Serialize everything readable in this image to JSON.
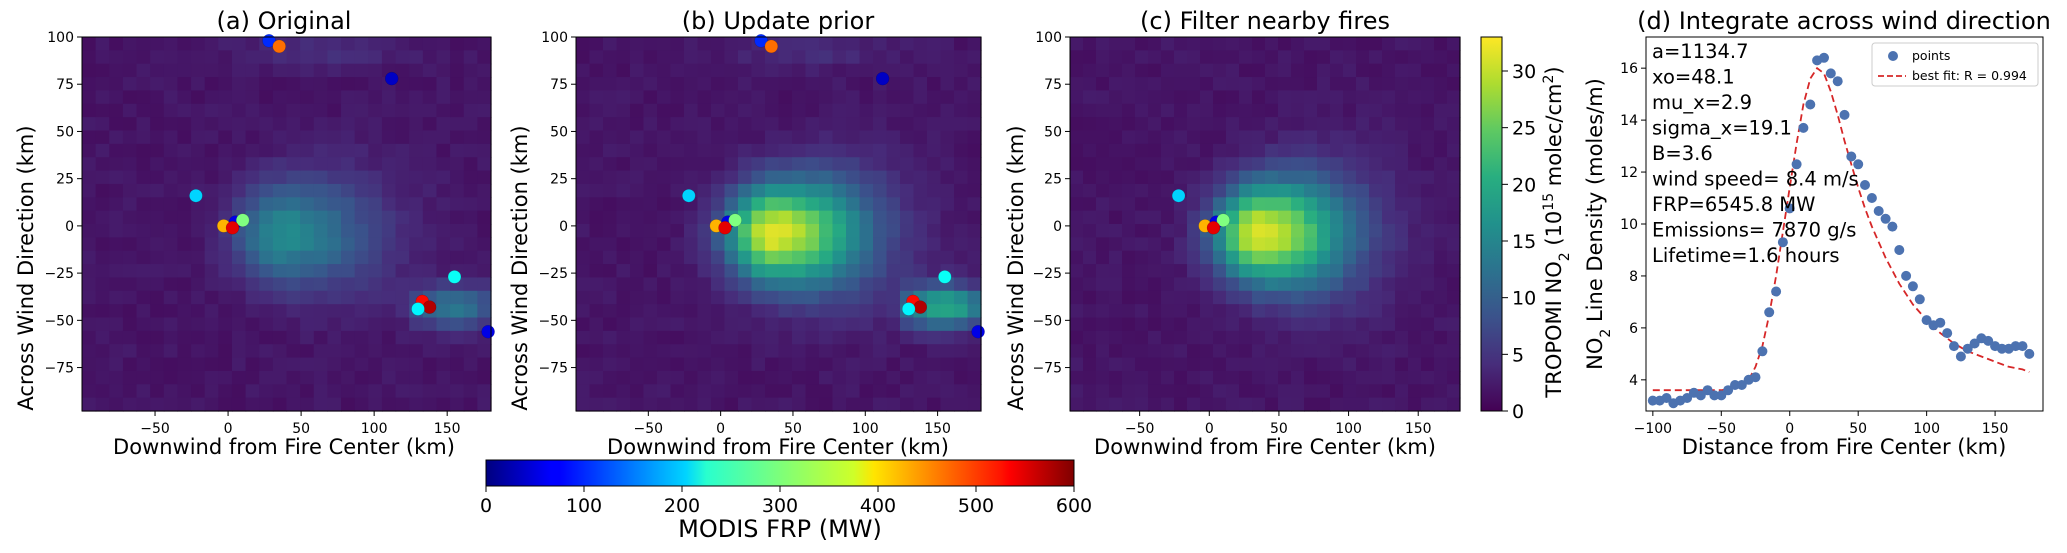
{
  "panels": [
    {
      "title": "(a) Original",
      "xlabel": "Downwind from Fire Center (km)",
      "ylabel": "Across Wind Direction (km)"
    },
    {
      "title": "(b) Update prior",
      "xlabel": "Downwind from Fire Center (km)",
      "ylabel": "Across Wind Direction (km)"
    },
    {
      "title": "(c) Filter nearby fires",
      "xlabel": "Downwind from Fire Center (km)",
      "ylabel": "Across Wind Direction (km)"
    }
  ],
  "no2_colorbar": {
    "label_main": "TROPOMI NO",
    "label_sub": "2",
    "label_units": " (10",
    "label_exp": "15",
    "label_tail": " molec/cm",
    "label_exp2": "2",
    "label_close": ")",
    "ticks": [
      "0",
      "5",
      "10",
      "15",
      "20",
      "25",
      "30"
    ],
    "range": [
      0,
      33
    ]
  },
  "frp_colorbar": {
    "label": "MODIS FRP (MW)",
    "ticks": [
      "0",
      "100",
      "200",
      "300",
      "400",
      "500",
      "600"
    ],
    "range": [
      0,
      600
    ]
  },
  "d_panel": {
    "title": "(d) Integrate across wind direction",
    "xlabel": "Distance from Fire Center (km)",
    "ylabel_main": "NO",
    "ylabel_sub": "2",
    "ylabel_tail": " Line Density (moles/m)",
    "legend_points": "points",
    "legend_fit": "best fit: R = 0.994",
    "annotations": [
      "a=1134.7",
      "xo=48.1",
      "mu_x=2.9",
      "sigma_x=19.1",
      "B=3.6",
      "wind speed=  8.4 m/s",
      "FRP=6545.8 MW",
      "Emissions=  7870 g/s",
      "Lifetime=1.6 hours"
    ]
  },
  "map_axes": {
    "xticks": [
      "−50",
      "0",
      "50",
      "100",
      "150"
    ],
    "xtick_values": [
      -50,
      0,
      50,
      100,
      150
    ],
    "yticks": [
      "100",
      "75",
      "50",
      "25",
      "0",
      "−25",
      "−50",
      "−75"
    ],
    "ytick_values": [
      100,
      75,
      50,
      25,
      0,
      -25,
      -50,
      -75
    ],
    "xlim": [
      -100,
      180
    ],
    "ylim": [
      -98,
      100
    ]
  },
  "chart_data": {
    "type": "scatter",
    "title": "(d) Integrate across wind direction",
    "xlabel": "Distance from Fire Center (km)",
    "ylabel": "NO2 Line Density (moles/m)",
    "xlim": [
      -105,
      185
    ],
    "ylim": [
      2.8,
      17.2
    ],
    "xticks": [
      -100,
      -50,
      0,
      50,
      100,
      150
    ],
    "xtick_labels": [
      "−100",
      "−50",
      "0",
      "50",
      "100",
      "150"
    ],
    "yticks": [
      4,
      6,
      8,
      10,
      12,
      14,
      16
    ],
    "legend_position": "top-right",
    "series": [
      {
        "name": "points",
        "color": "#4c72b0",
        "x": [
          -100,
          -95,
          -90,
          -85,
          -80,
          -75,
          -70,
          -65,
          -60,
          -55,
          -50,
          -45,
          -40,
          -35,
          -30,
          -25,
          -20,
          -15,
          -10,
          -5,
          0,
          5,
          10,
          15,
          20,
          25,
          30,
          35,
          40,
          45,
          50,
          55,
          60,
          65,
          70,
          75,
          80,
          85,
          90,
          95,
          100,
          105,
          110,
          115,
          120,
          125,
          130,
          135,
          140,
          145,
          150,
          155,
          160,
          165,
          170,
          175
        ],
        "y": [
          3.2,
          3.2,
          3.3,
          3.1,
          3.2,
          3.3,
          3.5,
          3.4,
          3.6,
          3.4,
          3.4,
          3.6,
          3.8,
          3.8,
          4.0,
          4.1,
          5.1,
          6.6,
          7.4,
          9.3,
          10.6,
          12.3,
          13.7,
          14.6,
          16.3,
          16.4,
          15.8,
          15.5,
          14.2,
          12.6,
          12.3,
          11.5,
          11.0,
          10.5,
          10.2,
          9.9,
          9.0,
          8.0,
          7.6,
          7.1,
          6.3,
          6.1,
          6.2,
          5.8,
          5.3,
          4.9,
          5.2,
          5.4,
          5.6,
          5.5,
          5.3,
          5.2,
          5.2,
          5.3,
          5.3,
          5.0
        ]
      },
      {
        "name": "best fit: R = 0.994",
        "color": "#d62728",
        "x": [
          -100,
          -80,
          -60,
          -50,
          -40,
          -35,
          -30,
          -25,
          -20,
          -15,
          -10,
          -5,
          0,
          5,
          10,
          15,
          20,
          25,
          30,
          35,
          40,
          45,
          50,
          55,
          60,
          70,
          80,
          90,
          100,
          110,
          120,
          130,
          140,
          150,
          160,
          170,
          175
        ],
        "y": [
          3.6,
          3.6,
          3.6,
          3.6,
          3.7,
          3.8,
          4.0,
          4.5,
          5.3,
          6.5,
          8.0,
          9.7,
          11.4,
          13.1,
          14.6,
          15.6,
          16.0,
          15.8,
          15.1,
          14.2,
          13.2,
          12.3,
          11.4,
          10.6,
          9.9,
          8.7,
          7.7,
          6.9,
          6.3,
          5.8,
          5.4,
          5.1,
          4.9,
          4.7,
          4.5,
          4.4,
          4.3
        ]
      }
    ]
  }
}
